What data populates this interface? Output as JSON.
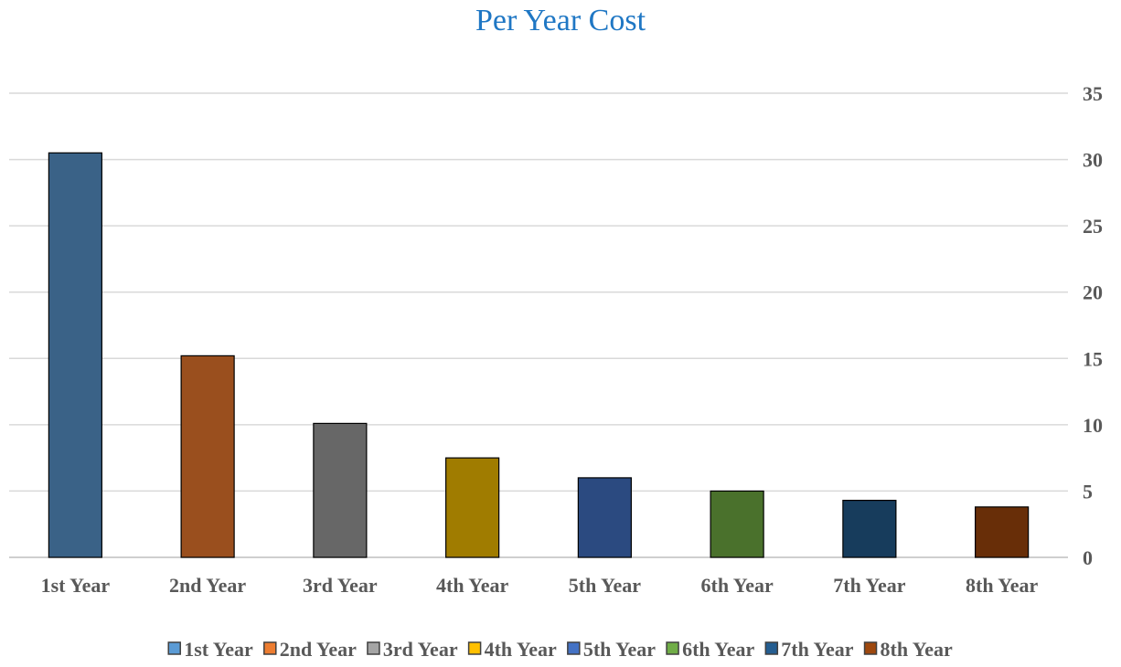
{
  "chart_data": {
    "type": "bar",
    "title": "Per Year Cost",
    "categories": [
      "1st Year",
      "2nd Year",
      "3rd Year",
      "4th Year",
      "5th Year",
      "6th Year",
      "7th Year",
      "8th Year"
    ],
    "values": [
      30.5,
      15.2,
      10.1,
      7.5,
      6.0,
      5.0,
      4.3,
      3.8
    ],
    "ylim": [
      0,
      35
    ],
    "yticks": [
      0,
      5,
      10,
      15,
      20,
      25,
      30,
      35
    ],
    "y_axis_side": "right",
    "grid": true,
    "legend_position": "bottom",
    "bar_colors": [
      "#3a6287",
      "#9a4f1e",
      "#676767",
      "#a07c00",
      "#2b4a80",
      "#4a712c",
      "#173c5c",
      "#682e08"
    ],
    "legend_colors": [
      "#5b9bd5",
      "#ed7d31",
      "#a5a5a5",
      "#ffc000",
      "#4472c4",
      "#70ad47",
      "#255e91",
      "#9e480e"
    ],
    "legend": [
      "1st Year",
      "2nd Year",
      "3rd Year",
      "4th Year",
      "5th Year",
      "6th Year",
      "7th Year",
      "8th Year"
    ]
  }
}
